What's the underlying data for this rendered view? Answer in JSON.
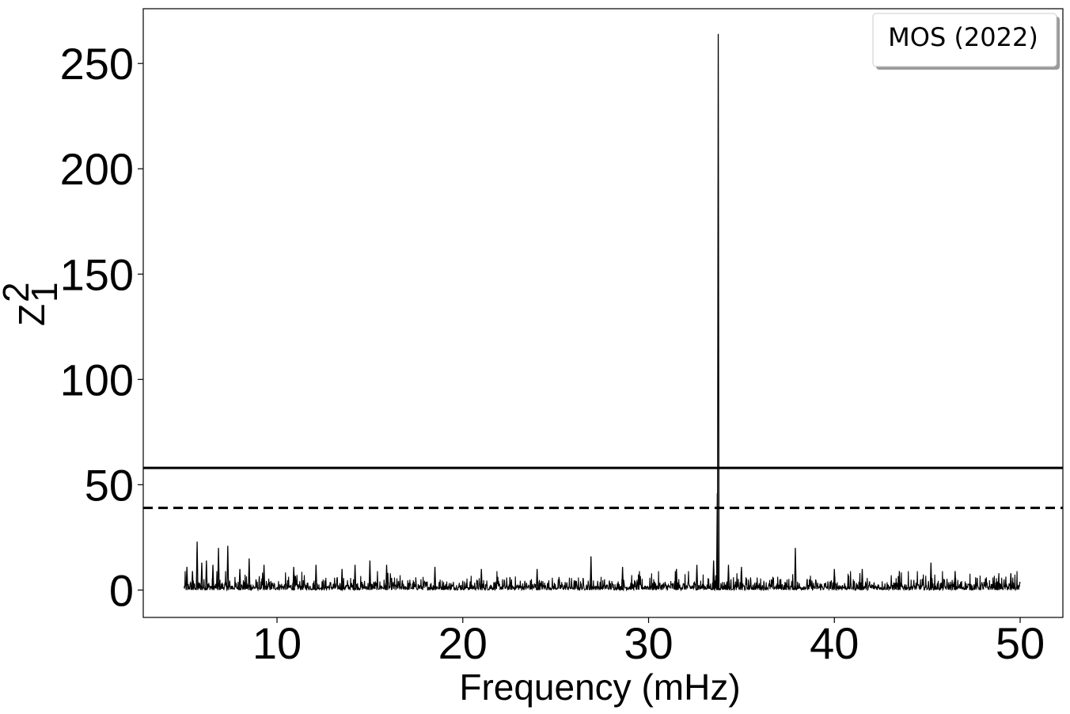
{
  "chart_data": {
    "type": "line",
    "xlabel": "Frequency (mHz)",
    "ylabel_base": "Z",
    "ylabel_sup": "2",
    "ylabel_sub": "1",
    "xlim": [
      2.8,
      52.3
    ],
    "ylim": [
      -13,
      276
    ],
    "x_ticks": [
      10,
      20,
      30,
      40,
      50
    ],
    "x_tick_labels": [
      "10",
      "20",
      "30",
      "40",
      "50"
    ],
    "y_ticks": [
      0,
      50,
      100,
      150,
      200,
      250
    ],
    "y_tick_labels": [
      "0",
      "50",
      "100",
      "150",
      "200",
      "250"
    ],
    "grid": false,
    "legend": {
      "label": "MOS (2022)",
      "placement": "top-right"
    },
    "series": [
      {
        "style": "solid-black",
        "x_range": [
          5,
          50
        ],
        "noise_level": 3,
        "peaks": [
          {
            "x": 5.15,
            "y": 11
          },
          {
            "x": 5.45,
            "y": 9
          },
          {
            "x": 5.7,
            "y": 23
          },
          {
            "x": 5.95,
            "y": 13
          },
          {
            "x": 6.2,
            "y": 14
          },
          {
            "x": 6.55,
            "y": 12
          },
          {
            "x": 6.85,
            "y": 20
          },
          {
            "x": 7.35,
            "y": 21
          },
          {
            "x": 8.0,
            "y": 10
          },
          {
            "x": 8.5,
            "y": 15
          },
          {
            "x": 9.3,
            "y": 12
          },
          {
            "x": 10.9,
            "y": 11
          },
          {
            "x": 12.1,
            "y": 12
          },
          {
            "x": 13.5,
            "y": 10
          },
          {
            "x": 14.2,
            "y": 12
          },
          {
            "x": 15.0,
            "y": 14
          },
          {
            "x": 15.9,
            "y": 12
          },
          {
            "x": 18.5,
            "y": 11
          },
          {
            "x": 21.0,
            "y": 10
          },
          {
            "x": 24.0,
            "y": 10
          },
          {
            "x": 26.9,
            "y": 16
          },
          {
            "x": 28.6,
            "y": 11
          },
          {
            "x": 31.5,
            "y": 10
          },
          {
            "x": 32.6,
            "y": 12
          },
          {
            "x": 33.5,
            "y": 14
          },
          {
            "x": 33.75,
            "y": 264
          },
          {
            "x": 33.7,
            "y": 46
          },
          {
            "x": 34.3,
            "y": 12
          },
          {
            "x": 35.0,
            "y": 11
          },
          {
            "x": 37.9,
            "y": 20
          },
          {
            "x": 40.0,
            "y": 10
          },
          {
            "x": 41.5,
            "y": 10
          },
          {
            "x": 43.5,
            "y": 9
          },
          {
            "x": 45.2,
            "y": 13
          },
          {
            "x": 46.5,
            "y": 9
          },
          {
            "x": 49.5,
            "y": 8
          }
        ]
      }
    ],
    "hlines": [
      {
        "y": 58,
        "style": "solid"
      },
      {
        "y": 39,
        "style": "dashed"
      }
    ]
  }
}
